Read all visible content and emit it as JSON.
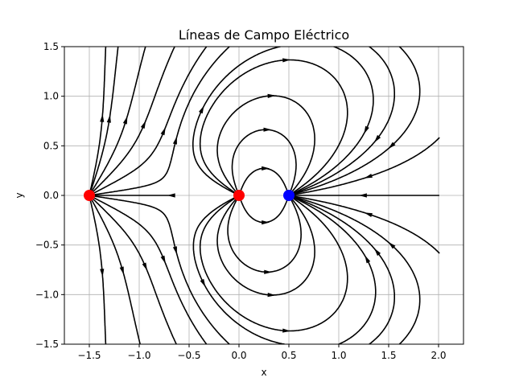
{
  "chart_data": {
    "type": "streamplot",
    "title": "Líneas de Campo Eléctrico",
    "xlabel": "x",
    "ylabel": "y",
    "xlim": [
      -1.75,
      2.25
    ],
    "ylim": [
      -1.5,
      1.5
    ],
    "grid": true,
    "x_ticks": [
      -1.5,
      -1.0,
      -0.5,
      0.0,
      0.5,
      1.0,
      1.5,
      2.0
    ],
    "x_tick_labels": [
      "−1.5",
      "−1.0",
      "−0.5",
      "0.0",
      "0.5",
      "1.0",
      "1.5",
      "2.0"
    ],
    "y_ticks": [
      -1.5,
      -1.0,
      -0.5,
      0.0,
      0.5,
      1.0,
      1.5
    ],
    "y_tick_labels": [
      "−1.5",
      "−1.0",
      "−0.5",
      "0.0",
      "0.5",
      "1.0",
      "1.5"
    ],
    "field_domain": {
      "x": [
        -1.5,
        2.0
      ],
      "y": [
        -1.5,
        1.5
      ]
    },
    "line_color": "#000000",
    "charges": [
      {
        "x": -1.5,
        "y": 0.0,
        "sign": "positive",
        "color": "#ff0000"
      },
      {
        "x": 0.0,
        "y": 0.0,
        "sign": "positive",
        "color": "#ff0000"
      },
      {
        "x": 0.5,
        "y": 0.0,
        "sign": "negative",
        "color": "#0000ff"
      }
    ]
  }
}
